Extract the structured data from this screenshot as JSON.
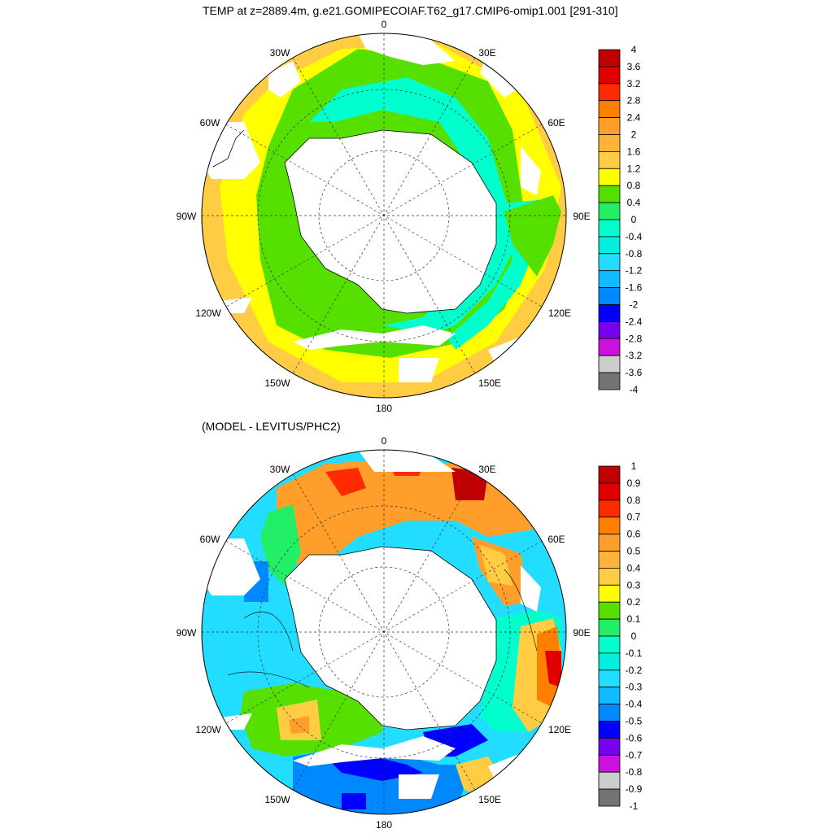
{
  "top_panel": {
    "title": "TEMP at z=2889.4m, g.e21.GOMIPECOIAF.T62_g17.CMIP6-omip1.001 [291-310]",
    "longitude_labels": [
      "0",
      "30E",
      "60E",
      "90E",
      "120E",
      "150E",
      "180",
      "150W",
      "120W",
      "90W",
      "60W",
      "30W"
    ],
    "colorbar": {
      "labels": [
        "4",
        "3.6",
        "3.2",
        "2.8",
        "2.4",
        "2",
        "1.6",
        "1.2",
        "0.8",
        "0.4",
        "0",
        "-0.4",
        "-0.8",
        "-1.2",
        "-1.6",
        "-2",
        "-2.4",
        "-2.8",
        "-3.2",
        "-3.6",
        "-4"
      ],
      "colors": [
        "#c00000",
        "#e00000",
        "#ff2a00",
        "#ff7f00",
        "#ff9e2a",
        "#ffb23a",
        "#ffcc44",
        "#ffff00",
        "#55e000",
        "#22ee66",
        "#00ffcc",
        "#00eedd",
        "#22ddff",
        "#11bbff",
        "#0088ff",
        "#0000ff",
        "#7700ee",
        "#cc11dd",
        "#cccccc",
        "#737373"
      ]
    }
  },
  "bottom_panel": {
    "title": "(MODEL - LEVITUS/PHC2)",
    "longitude_labels": [
      "0",
      "30E",
      "60E",
      "90E",
      "120E",
      "150E",
      "180",
      "150W",
      "120W",
      "90W",
      "60W",
      "30W"
    ],
    "colorbar": {
      "labels": [
        "1",
        "0.9",
        "0.8",
        "0.7",
        "0.6",
        "0.5",
        "0.4",
        "0.3",
        "0.2",
        "0.1",
        "0",
        "-0.1",
        "-0.2",
        "-0.3",
        "-0.4",
        "-0.5",
        "-0.6",
        "-0.7",
        "-0.8",
        "-0.9",
        "-1"
      ],
      "colors": [
        "#c00000",
        "#e00000",
        "#ff2a00",
        "#ff7f00",
        "#ff9e2a",
        "#ffb23a",
        "#ffcc44",
        "#ffff00",
        "#55e000",
        "#22ee66",
        "#00ffcc",
        "#00eedd",
        "#22ddff",
        "#11bbff",
        "#0088ff",
        "#0000ff",
        "#7700ee",
        "#cc11dd",
        "#cccccc",
        "#737373"
      ]
    }
  }
}
